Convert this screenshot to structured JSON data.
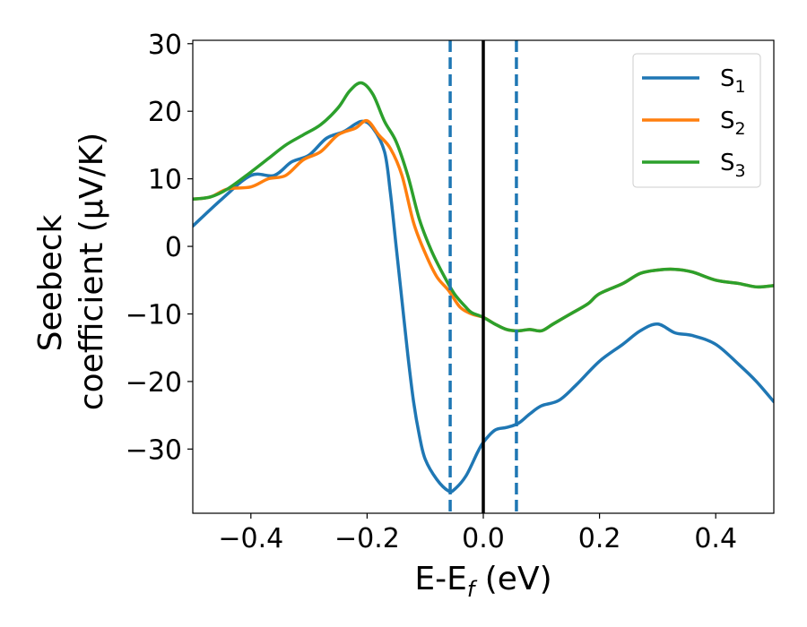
{
  "chart_data": {
    "type": "line",
    "xlabel": {
      "main": "E-E",
      "sub": "f",
      "unit": " (eV)"
    },
    "ylabel": {
      "line1": "Seebeck",
      "line2": "coefficient  (μV/K)"
    },
    "xlim": [
      -0.5,
      0.5
    ],
    "ylim": [
      -39.5,
      30.5
    ],
    "x_ticks": [
      -0.4,
      -0.2,
      0.0,
      0.2,
      0.4
    ],
    "x_tick_labels": [
      "−0.4",
      "−0.2",
      "0.0",
      "0.2",
      "0.4"
    ],
    "y_ticks": [
      -30,
      -20,
      -10,
      0,
      10,
      20,
      30
    ],
    "y_tick_labels": [
      "−30",
      "−20",
      "−10",
      "0",
      "10",
      "20",
      "30"
    ],
    "grid": false,
    "legend_position": "top-right",
    "vlines": [
      {
        "x": -0.057,
        "style": "dashed",
        "color": "#1f77b4"
      },
      {
        "x": 0.0,
        "style": "solid",
        "color": "#000000"
      },
      {
        "x": 0.057,
        "style": "dashed",
        "color": "#1f77b4"
      }
    ],
    "series": [
      {
        "name": "S",
        "sub": "1",
        "color": "#1f77b4",
        "points": [
          [
            -0.5,
            3.0
          ],
          [
            -0.45,
            7.0
          ],
          [
            -0.4,
            10.5
          ],
          [
            -0.36,
            10.5
          ],
          [
            -0.33,
            12.5
          ],
          [
            -0.3,
            13.5
          ],
          [
            -0.27,
            16.0
          ],
          [
            -0.24,
            17.0
          ],
          [
            -0.21,
            18.5
          ],
          [
            -0.19,
            17.5
          ],
          [
            -0.17,
            14.0
          ],
          [
            -0.16,
            8.0
          ],
          [
            -0.15,
            0.0
          ],
          [
            -0.14,
            -8.0
          ],
          [
            -0.13,
            -16.0
          ],
          [
            -0.12,
            -23.0
          ],
          [
            -0.11,
            -28.0
          ],
          [
            -0.1,
            -31.5
          ],
          [
            -0.08,
            -34.5
          ],
          [
            -0.06,
            -36.2
          ],
          [
            -0.05,
            -36.0
          ],
          [
            -0.03,
            -34.0
          ],
          [
            -0.01,
            -30.5
          ],
          [
            0.0,
            -29.0
          ],
          [
            0.02,
            -27.2
          ],
          [
            0.04,
            -26.8
          ],
          [
            0.06,
            -26.2
          ],
          [
            0.08,
            -24.8
          ],
          [
            0.1,
            -23.6
          ],
          [
            0.13,
            -22.8
          ],
          [
            0.16,
            -20.5
          ],
          [
            0.2,
            -17.0
          ],
          [
            0.24,
            -14.5
          ],
          [
            0.27,
            -12.5
          ],
          [
            0.3,
            -11.5
          ],
          [
            0.33,
            -12.8
          ],
          [
            0.36,
            -13.2
          ],
          [
            0.4,
            -14.5
          ],
          [
            0.44,
            -17.5
          ],
          [
            0.47,
            -20.0
          ],
          [
            0.5,
            -23.0
          ]
        ]
      },
      {
        "name": "S",
        "sub": "2",
        "color": "#ff7f0e",
        "points": [
          [
            -0.5,
            7.0
          ],
          [
            -0.47,
            7.3
          ],
          [
            -0.44,
            8.5
          ],
          [
            -0.4,
            8.8
          ],
          [
            -0.37,
            10.0
          ],
          [
            -0.34,
            10.5
          ],
          [
            -0.31,
            12.8
          ],
          [
            -0.28,
            14.0
          ],
          [
            -0.25,
            16.5
          ],
          [
            -0.22,
            17.5
          ],
          [
            -0.2,
            18.6
          ],
          [
            -0.18,
            16.5
          ],
          [
            -0.16,
            14.5
          ],
          [
            -0.14,
            10.5
          ],
          [
            -0.12,
            3.5
          ],
          [
            -0.1,
            -1.0
          ],
          [
            -0.08,
            -4.5
          ],
          [
            -0.06,
            -6.5
          ],
          [
            -0.04,
            -9.0
          ],
          [
            -0.02,
            -10.0
          ],
          [
            0.0,
            -10.5
          ],
          [
            0.02,
            -11.5
          ],
          [
            0.04,
            -12.3
          ],
          [
            0.06,
            -12.5
          ],
          [
            0.08,
            -12.3
          ],
          [
            0.1,
            -12.5
          ],
          [
            0.12,
            -11.5
          ],
          [
            0.15,
            -10.0
          ],
          [
            0.18,
            -8.5
          ],
          [
            0.2,
            -7.0
          ],
          [
            0.24,
            -5.5
          ],
          [
            0.27,
            -4.0
          ],
          [
            0.3,
            -3.5
          ],
          [
            0.33,
            -3.4
          ],
          [
            0.36,
            -3.8
          ],
          [
            0.4,
            -5.0
          ],
          [
            0.44,
            -5.5
          ],
          [
            0.47,
            -6.0
          ],
          [
            0.5,
            -5.8
          ]
        ]
      },
      {
        "name": "S",
        "sub": "3",
        "color": "#2ca02c",
        "points": [
          [
            -0.5,
            7.0
          ],
          [
            -0.47,
            7.3
          ],
          [
            -0.44,
            8.5
          ],
          [
            -0.4,
            11.0
          ],
          [
            -0.37,
            13.0
          ],
          [
            -0.34,
            15.0
          ],
          [
            -0.31,
            16.5
          ],
          [
            -0.28,
            18.0
          ],
          [
            -0.25,
            20.5
          ],
          [
            -0.23,
            23.0
          ],
          [
            -0.21,
            24.2
          ],
          [
            -0.19,
            22.5
          ],
          [
            -0.17,
            18.5
          ],
          [
            -0.15,
            15.5
          ],
          [
            -0.13,
            10.5
          ],
          [
            -0.11,
            4.0
          ],
          [
            -0.09,
            -0.5
          ],
          [
            -0.07,
            -4.0
          ],
          [
            -0.05,
            -7.0
          ],
          [
            -0.03,
            -9.0
          ],
          [
            -0.02,
            -9.8
          ],
          [
            0.0,
            -10.5
          ],
          [
            0.02,
            -11.5
          ],
          [
            0.04,
            -12.3
          ],
          [
            0.06,
            -12.5
          ],
          [
            0.08,
            -12.3
          ],
          [
            0.1,
            -12.5
          ],
          [
            0.12,
            -11.5
          ],
          [
            0.15,
            -10.0
          ],
          [
            0.18,
            -8.5
          ],
          [
            0.2,
            -7.0
          ],
          [
            0.24,
            -5.5
          ],
          [
            0.27,
            -4.0
          ],
          [
            0.3,
            -3.5
          ],
          [
            0.33,
            -3.4
          ],
          [
            0.36,
            -3.8
          ],
          [
            0.4,
            -5.0
          ],
          [
            0.44,
            -5.5
          ],
          [
            0.47,
            -6.0
          ],
          [
            0.5,
            -5.8
          ]
        ]
      }
    ]
  }
}
